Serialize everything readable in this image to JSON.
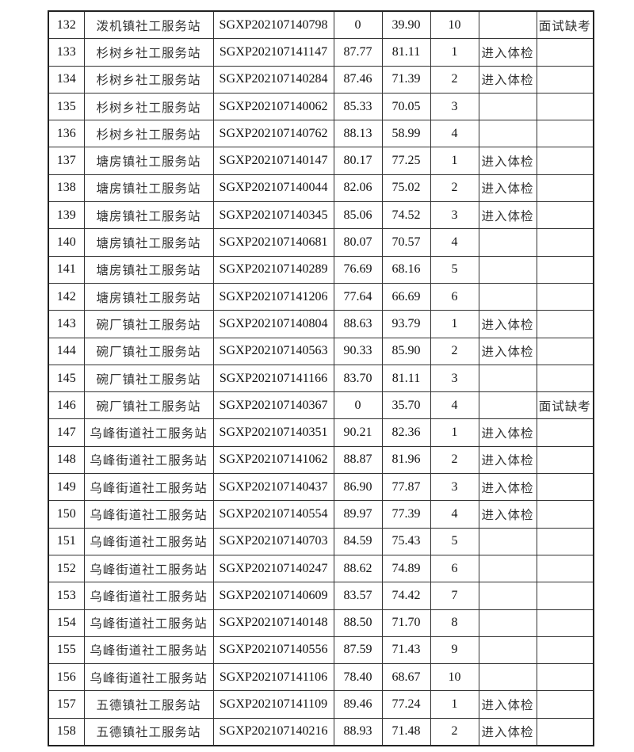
{
  "table": {
    "rows": [
      [
        "132",
        "泼机镇社工服务站",
        "SGXP202107140798",
        "0",
        "39.90",
        "10",
        "",
        "面试缺考"
      ],
      [
        "133",
        "杉树乡社工服务站",
        "SGXP202107141147",
        "87.77",
        "81.11",
        "1",
        "进入体检",
        ""
      ],
      [
        "134",
        "杉树乡社工服务站",
        "SGXP202107140284",
        "87.46",
        "71.39",
        "2",
        "进入体检",
        ""
      ],
      [
        "135",
        "杉树乡社工服务站",
        "SGXP202107140062",
        "85.33",
        "70.05",
        "3",
        "",
        ""
      ],
      [
        "136",
        "杉树乡社工服务站",
        "SGXP202107140762",
        "88.13",
        "58.99",
        "4",
        "",
        ""
      ],
      [
        "137",
        "塘房镇社工服务站",
        "SGXP202107140147",
        "80.17",
        "77.25",
        "1",
        "进入体检",
        ""
      ],
      [
        "138",
        "塘房镇社工服务站",
        "SGXP202107140044",
        "82.06",
        "75.02",
        "2",
        "进入体检",
        ""
      ],
      [
        "139",
        "塘房镇社工服务站",
        "SGXP202107140345",
        "85.06",
        "74.52",
        "3",
        "进入体检",
        ""
      ],
      [
        "140",
        "塘房镇社工服务站",
        "SGXP202107140681",
        "80.07",
        "70.57",
        "4",
        "",
        ""
      ],
      [
        "141",
        "塘房镇社工服务站",
        "SGXP202107140289",
        "76.69",
        "68.16",
        "5",
        "",
        ""
      ],
      [
        "142",
        "塘房镇社工服务站",
        "SGXP202107141206",
        "77.64",
        "66.69",
        "6",
        "",
        ""
      ],
      [
        "143",
        "碗厂镇社工服务站",
        "SGXP202107140804",
        "88.63",
        "93.79",
        "1",
        "进入体检",
        ""
      ],
      [
        "144",
        "碗厂镇社工服务站",
        "SGXP202107140563",
        "90.33",
        "85.90",
        "2",
        "进入体检",
        ""
      ],
      [
        "145",
        "碗厂镇社工服务站",
        "SGXP202107141166",
        "83.70",
        "81.11",
        "3",
        "",
        ""
      ],
      [
        "146",
        "碗厂镇社工服务站",
        "SGXP202107140367",
        "0",
        "35.70",
        "4",
        "",
        "面试缺考"
      ],
      [
        "147",
        "乌峰街道社工服务站",
        "SGXP202107140351",
        "90.21",
        "82.36",
        "1",
        "进入体检",
        ""
      ],
      [
        "148",
        "乌峰街道社工服务站",
        "SGXP202107141062",
        "88.87",
        "81.96",
        "2",
        "进入体检",
        ""
      ],
      [
        "149",
        "乌峰街道社工服务站",
        "SGXP202107140437",
        "86.90",
        "77.87",
        "3",
        "进入体检",
        ""
      ],
      [
        "150",
        "乌峰街道社工服务站",
        "SGXP202107140554",
        "89.97",
        "77.39",
        "4",
        "进入体检",
        ""
      ],
      [
        "151",
        "乌峰街道社工服务站",
        "SGXP202107140703",
        "84.59",
        "75.43",
        "5",
        "",
        ""
      ],
      [
        "152",
        "乌峰街道社工服务站",
        "SGXP202107140247",
        "88.62",
        "74.89",
        "6",
        "",
        ""
      ],
      [
        "153",
        "乌峰街道社工服务站",
        "SGXP202107140609",
        "83.57",
        "74.42",
        "7",
        "",
        ""
      ],
      [
        "154",
        "乌峰街道社工服务站",
        "SGXP202107140148",
        "88.50",
        "71.70",
        "8",
        "",
        ""
      ],
      [
        "155",
        "乌峰街道社工服务站",
        "SGXP202107140556",
        "87.59",
        "71.43",
        "9",
        "",
        ""
      ],
      [
        "156",
        "乌峰街道社工服务站",
        "SGXP202107141106",
        "78.40",
        "68.67",
        "10",
        "",
        ""
      ],
      [
        "157",
        "五德镇社工服务站",
        "SGXP202107141109",
        "89.46",
        "77.24",
        "1",
        "进入体检",
        ""
      ],
      [
        "158",
        "五德镇社工服务站",
        "SGXP202107140216",
        "88.93",
        "71.48",
        "2",
        "进入体检",
        ""
      ]
    ]
  }
}
